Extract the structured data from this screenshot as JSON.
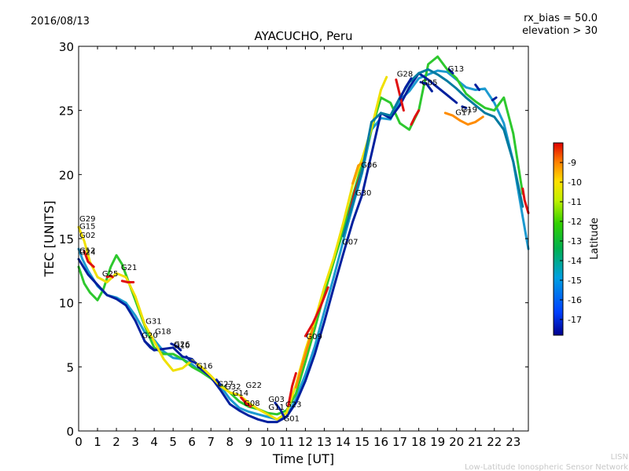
{
  "date": "2016/08/13",
  "rx_bias": "rx_bias = 50.0",
  "elevation": "elevation > 30",
  "footer": {
    "line1": "LISN",
    "line2": "Low-Latitude Ionospheric Sensor Network"
  },
  "chart_data": {
    "type": "line",
    "title": "AYACUCHO, Peru",
    "xlabel": "Time [UT]",
    "ylabel": "TEC [UNITS]",
    "xlim": [
      0,
      23.8
    ],
    "ylim": [
      0,
      30
    ],
    "x_ticks": [
      "0",
      "1",
      "2",
      "3",
      "4",
      "5",
      "6",
      "7",
      "8",
      "9",
      "10",
      "11",
      "12",
      "13",
      "14",
      "15",
      "16",
      "17",
      "18",
      "19",
      "20",
      "21",
      "22",
      "23"
    ],
    "y_ticks": [
      "0",
      "5",
      "10",
      "15",
      "20",
      "25",
      "30"
    ],
    "colorbar": {
      "label": "Latitude",
      "range": [
        -17.8,
        -8.0
      ],
      "ticks": [
        "-9",
        "-10",
        "-11",
        "-12",
        "-13",
        "-14",
        "-15",
        "-16",
        "-17"
      ],
      "tick_values": [
        -9,
        -10,
        -11,
        -12,
        -13,
        -14,
        -15,
        -16,
        -17
      ]
    },
    "satellite_labels": [
      {
        "name": "G29",
        "x": 0.0,
        "y": 16.6
      },
      {
        "name": "G15",
        "x": 0.0,
        "y": 16.0
      },
      {
        "name": "G02",
        "x": 0.0,
        "y": 15.3
      },
      {
        "name": "G12",
        "x": 0.0,
        "y": 14.1
      },
      {
        "name": "G24",
        "x": 0.0,
        "y": 14.0
      },
      {
        "name": "G25",
        "x": 1.2,
        "y": 12.3
      },
      {
        "name": "G21",
        "x": 2.2,
        "y": 12.8
      },
      {
        "name": "G31",
        "x": 3.5,
        "y": 8.6
      },
      {
        "name": "G18",
        "x": 4.0,
        "y": 7.8
      },
      {
        "name": "G20",
        "x": 3.3,
        "y": 7.5
      },
      {
        "name": "G26",
        "x": 5.0,
        "y": 6.8
      },
      {
        "name": "G10",
        "x": 5.0,
        "y": 6.7
      },
      {
        "name": "G16",
        "x": 6.2,
        "y": 5.1
      },
      {
        "name": "G27",
        "x": 7.3,
        "y": 3.7
      },
      {
        "name": "G32",
        "x": 7.7,
        "y": 3.5
      },
      {
        "name": "G22",
        "x": 8.8,
        "y": 3.6
      },
      {
        "name": "G14",
        "x": 8.1,
        "y": 3.0
      },
      {
        "name": "G03",
        "x": 10.0,
        "y": 2.5
      },
      {
        "name": "G08",
        "x": 8.7,
        "y": 2.2
      },
      {
        "name": "G11",
        "x": 10.0,
        "y": 1.9
      },
      {
        "name": "G23",
        "x": 10.9,
        "y": 2.1
      },
      {
        "name": "G01",
        "x": 10.8,
        "y": 1.0
      },
      {
        "name": "G09",
        "x": 12.0,
        "y": 7.4
      },
      {
        "name": "G07",
        "x": 13.9,
        "y": 14.8
      },
      {
        "name": "G30",
        "x": 14.6,
        "y": 18.6
      },
      {
        "name": "G06",
        "x": 14.9,
        "y": 20.8
      },
      {
        "name": "G28",
        "x": 16.8,
        "y": 27.9
      },
      {
        "name": "G05",
        "x": 18.1,
        "y": 27.2
      },
      {
        "name": "G13",
        "x": 19.5,
        "y": 28.3
      },
      {
        "name": "G17",
        "x": 19.9,
        "y": 24.9
      },
      {
        "name": "G19",
        "x": 20.2,
        "y": 25.1
      }
    ],
    "series": [
      {
        "color": "#1c9ad0",
        "x": [
          0,
          0.2,
          0.5,
          1.0,
          1.5,
          2.0,
          2.5,
          3.0,
          3.5,
          4.0,
          4.5,
          5.0,
          5.5,
          6.0,
          6.5,
          7.0,
          7.5,
          8.0,
          8.5,
          9.0,
          9.5,
          10.0,
          10.5,
          11.0,
          11.5,
          12.0,
          12.5,
          13.0,
          13.5,
          14.0,
          14.5,
          15.0,
          15.5,
          16.0,
          16.5,
          17.0,
          17.5,
          18.0,
          18.5,
          19.0,
          19.5,
          20.0,
          20.5,
          21.0,
          21.5,
          22.0,
          22.5,
          23.0,
          23.5,
          23.8
        ],
        "y": [
          14.2,
          13.4,
          12.5,
          11.3,
          10.6,
          10.4,
          10.0,
          9.0,
          7.7,
          7.1,
          6.2,
          5.7,
          5.6,
          5.2,
          4.6,
          4.1,
          3.5,
          2.5,
          1.8,
          1.5,
          1.3,
          1.1,
          0.9,
          1.1,
          2.5,
          4.4,
          6.6,
          9.3,
          12.0,
          14.8,
          17.5,
          20.1,
          23.5,
          24.4,
          24.3,
          25.8,
          26.5,
          27.5,
          27.8,
          28.1,
          28.0,
          27.4,
          26.8,
          26.6,
          26.7,
          25.6,
          24.0,
          21.0,
          16.7,
          14.2
        ]
      },
      {
        "color": "#2ec82e",
        "x": [
          0,
          0.3,
          0.6,
          1.0,
          1.3,
          1.7,
          2.0,
          2.3,
          2.6,
          3.0,
          3.5,
          4.0,
          4.5,
          5.0,
          5.5,
          6.0,
          6.5,
          7.0,
          7.5,
          8.0,
          8.5,
          9.0,
          9.5,
          10.0,
          10.5,
          11.0,
          11.5,
          12.0,
          12.5,
          13.0,
          13.5,
          14.0,
          14.5,
          15.0,
          15.5,
          16.0,
          16.5,
          17.0,
          17.5,
          18.0,
          18.5,
          19.0,
          19.5,
          20.0,
          20.5,
          21.0,
          21.5,
          22.0,
          22.5,
          23.0,
          23.5
        ],
        "y": [
          12.8,
          11.5,
          10.8,
          10.2,
          11.0,
          12.8,
          13.7,
          13.0,
          11.8,
          10.2,
          8.2,
          6.5,
          6.0,
          6.0,
          5.6,
          5.0,
          4.6,
          4.1,
          3.6,
          3.0,
          2.3,
          1.9,
          1.7,
          1.4,
          1.3,
          1.6,
          2.9,
          5.4,
          8.0,
          10.7,
          13.2,
          15.6,
          18.3,
          20.8,
          23.5,
          26.0,
          25.6,
          24.0,
          23.5,
          25.0,
          28.6,
          29.2,
          28.2,
          27.5,
          26.3,
          25.7,
          25.2,
          25.0,
          26.0,
          23.2,
          18.5
        ]
      },
      {
        "color": "#00209e",
        "x": [
          0,
          0.5,
          1.0,
          1.5,
          2.0,
          2.5,
          3.0,
          3.5,
          4.0,
          4.5,
          5.0,
          5.5,
          6.0,
          6.5,
          7.0,
          7.5,
          8.0,
          8.5,
          9.0,
          9.5,
          10.0,
          10.5,
          11.0,
          11.5,
          12.0,
          12.5,
          13.0,
          13.5,
          14.0,
          14.5,
          15.0,
          15.5,
          16.0,
          16.5,
          17.0,
          17.5,
          18.0,
          18.5,
          19.0,
          19.5,
          20.0
        ],
        "y": [
          13.4,
          12.2,
          11.4,
          10.6,
          10.3,
          9.8,
          8.6,
          7.0,
          6.3,
          6.4,
          6.5,
          5.8,
          5.6,
          4.8,
          4.2,
          3.2,
          2.1,
          1.6,
          1.2,
          0.9,
          0.7,
          0.7,
          1.1,
          2.2,
          3.9,
          6.0,
          8.5,
          11.2,
          13.8,
          16.3,
          18.4,
          21.6,
          24.8,
          24.4,
          25.4,
          26.8,
          27.9,
          27.4,
          26.8,
          26.2,
          25.6
        ]
      },
      {
        "color": "#f0e000",
        "x": [
          0,
          0.3,
          0.6,
          1.0,
          1.5,
          2.0,
          2.5,
          3.0,
          3.5,
          4.0,
          4.5,
          5.0,
          5.5,
          6.0,
          6.5,
          7.0,
          7.5,
          8.0,
          8.5,
          9.0,
          9.5,
          10.0,
          10.5,
          11.0,
          11.5,
          12.0,
          12.5,
          13.0,
          13.5,
          14.0,
          14.5,
          15.0,
          15.5,
          16.0,
          16.3
        ],
        "y": [
          15.9,
          14.8,
          13.2,
          12.0,
          11.6,
          12.3,
          12.0,
          10.5,
          8.3,
          7.0,
          5.6,
          4.7,
          4.9,
          5.5,
          5.0,
          4.3,
          3.5,
          3.0,
          2.8,
          2.2,
          1.7,
          1.3,
          0.9,
          1.4,
          3.6,
          6.3,
          8.6,
          11.2,
          13.5,
          16.2,
          19.2,
          21.2,
          23.6,
          26.6,
          27.6
        ]
      },
      {
        "color": "#e01010",
        "x": [
          0.3,
          0.5,
          0.8
        ],
        "y": [
          14.0,
          13.2,
          12.8
        ]
      },
      {
        "color": "#e01010",
        "x": [
          2.3,
          2.6,
          2.9
        ],
        "y": [
          11.7,
          11.6,
          11.6
        ]
      },
      {
        "color": "#e01010",
        "x": [
          11.1,
          11.3,
          11.5
        ],
        "y": [
          2.0,
          3.5,
          4.5
        ]
      },
      {
        "color": "#e01010",
        "x": [
          12.0,
          12.4,
          12.8,
          13.2
        ],
        "y": [
          7.4,
          8.4,
          9.7,
          11.2
        ]
      },
      {
        "color": "#e01010",
        "x": [
          14.3,
          14.6,
          15.0
        ],
        "y": [
          16.8,
          18.6,
          20.3
        ]
      },
      {
        "color": "#e01010",
        "x": [
          16.8,
          17.0,
          17.2
        ],
        "y": [
          27.4,
          26.2,
          25.0
        ]
      },
      {
        "color": "#e01010",
        "x": [
          17.6,
          17.8,
          18.0
        ],
        "y": [
          23.9,
          24.5,
          25.0
        ]
      },
      {
        "color": "#e01010",
        "x": [
          23.5,
          23.6,
          23.8
        ],
        "y": [
          18.9,
          18.0,
          17.0
        ]
      },
      {
        "color": "#ff8c00",
        "x": [
          11.5,
          11.8,
          12.1,
          12.4
        ],
        "y": [
          3.4,
          5.0,
          6.5,
          8.0
        ]
      },
      {
        "color": "#ff8c00",
        "x": [
          19.4,
          19.8,
          20.2,
          20.6,
          21.0,
          21.4
        ],
        "y": [
          24.8,
          24.6,
          24.2,
          23.9,
          24.1,
          24.5
        ]
      },
      {
        "color": "#f8a000",
        "x": [
          14.5,
          14.8,
          15.1
        ],
        "y": [
          19.3,
          20.7,
          21.0
        ]
      },
      {
        "color": "#007aa0",
        "x": [
          14.0,
          14.5,
          15.0,
          15.5,
          16.0,
          16.5,
          17.0,
          17.5,
          18.0,
          18.5,
          19.0,
          19.5,
          20.0,
          20.5,
          21.0,
          21.5,
          22.0,
          22.5,
          23.0,
          23.5
        ],
        "y": [
          15.2,
          17.7,
          20.3,
          24.1,
          24.8,
          24.6,
          26.0,
          27.2,
          27.9,
          28.2,
          27.8,
          27.3,
          26.7,
          26.0,
          25.4,
          24.8,
          24.5,
          23.5,
          21.0,
          17.5
        ]
      },
      {
        "color": "#00209e",
        "x": [
          17.0,
          17.3,
          17.6
        ],
        "y": [
          25.9,
          26.8,
          27.5
        ]
      },
      {
        "color": "#00209e",
        "x": [
          18.1,
          18.4,
          18.7
        ],
        "y": [
          27.2,
          27.1,
          26.5
        ]
      },
      {
        "color": "#00209e",
        "x": [
          19.6,
          19.8
        ],
        "y": [
          28.2,
          27.9
        ]
      },
      {
        "color": "#00209e",
        "x": [
          20.3,
          20.5
        ],
        "y": [
          25.3,
          25.2
        ]
      },
      {
        "color": "#00209e",
        "x": [
          21.0,
          21.2
        ],
        "y": [
          27.0,
          26.6
        ]
      },
      {
        "color": "#00209e",
        "x": [
          21.9,
          22.1
        ],
        "y": [
          25.8,
          26.0
        ]
      },
      {
        "color": "#00209e",
        "x": [
          3.5,
          3.8,
          4.0
        ],
        "y": [
          7.0,
          6.5,
          6.3
        ]
      },
      {
        "color": "#00209e",
        "x": [
          4.9,
          5.2,
          5.4
        ],
        "y": [
          6.8,
          6.6,
          6.3
        ]
      },
      {
        "color": "#00209e",
        "x": [
          5.7,
          5.9,
          6.2
        ],
        "y": [
          5.8,
          5.5,
          5.3
        ]
      },
      {
        "color": "#00209e",
        "x": [
          7.3,
          7.5
        ],
        "y": [
          4.0,
          3.6
        ]
      },
      {
        "color": "#00209e",
        "x": [
          10.4,
          10.7,
          10.9
        ],
        "y": [
          2.2,
          1.6,
          1.0
        ]
      },
      {
        "color": "#e01010",
        "x": [
          8.6,
          8.9,
          9.1
        ],
        "y": [
          2.6,
          2.1,
          1.9
        ]
      },
      {
        "color": "#e01010",
        "x": [
          1.5,
          1.7,
          1.8
        ],
        "y": [
          12.0,
          12.1,
          12.0
        ]
      }
    ]
  }
}
